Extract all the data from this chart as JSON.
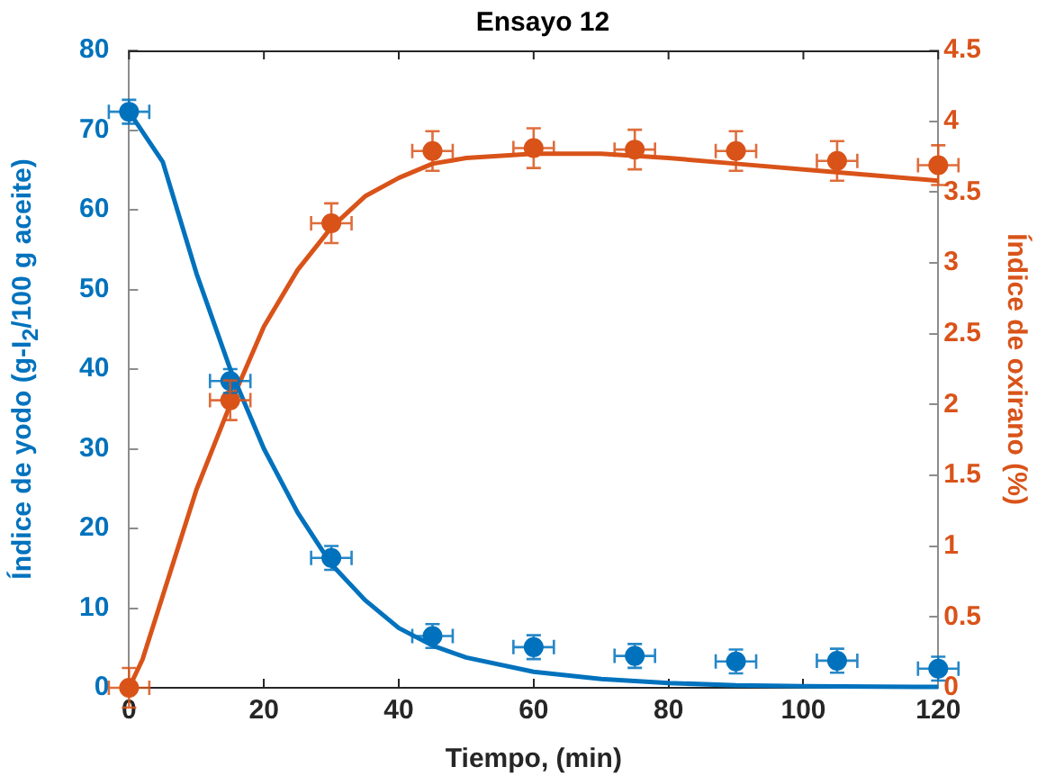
{
  "chart_data": {
    "type": "scatter",
    "title": "Ensayo 12",
    "xlabel": "Tiempo, (min)",
    "ylabel": "Índice de yodo (g-I$_{2}$/100 g aceite)",
    "y2label": "Índice de oxirano (%)",
    "xlim": [
      0,
      120
    ],
    "xticks": [
      0,
      20,
      40,
      60,
      80,
      100,
      120
    ],
    "ylim": [
      0,
      80
    ],
    "yticks": [
      0,
      10,
      20,
      30,
      40,
      50,
      60,
      70,
      80
    ],
    "y2lim": [
      0,
      4.5
    ],
    "y2ticks": [
      0,
      0.5,
      1,
      1.5,
      2,
      2.5,
      3,
      3.5,
      4,
      4.5
    ],
    "grid": false,
    "series": [
      {
        "marker": "circle",
        "color": "#0072bd",
        "x": [
          0,
          15,
          30,
          45,
          60,
          75,
          90,
          105,
          120
        ],
        "values": [
          72.3,
          38.5,
          16.3,
          6.5,
          5.1,
          4.0,
          3.3,
          3.4,
          2.4
        ],
        "errors": [
          1.5,
          1.5,
          1.5,
          1.5,
          1.5,
          1.5,
          1.5,
          1.5,
          1.5
        ],
        "xerrors": [
          3,
          3,
          3,
          3,
          3,
          3,
          3,
          3,
          3
        ]
      },
      {
        "marker": "circle",
        "axis": "y2",
        "color": "#d95319",
        "x": [
          0,
          15,
          30,
          45,
          60,
          75,
          90,
          105,
          120
        ],
        "values": [
          0,
          2.03,
          3.28,
          3.79,
          3.81,
          3.8,
          3.79,
          3.72,
          3.69
        ],
        "errors": [
          0.14,
          0.14,
          0.14,
          0.14,
          0.14,
          0.14,
          0.14,
          0.14,
          0.14
        ],
        "xerrors": [
          3,
          3,
          3,
          3,
          3,
          3,
          3,
          3,
          3
        ]
      },
      {
        "type": "line",
        "marker": "none",
        "color": "#0072bd",
        "x": [
          0,
          5,
          10,
          15,
          20,
          25,
          30,
          35,
          40,
          45,
          50,
          60,
          70,
          80,
          90,
          100,
          120
        ],
        "values": [
          72.3,
          66,
          52,
          40,
          30,
          22,
          15.5,
          11,
          7.5,
          5.3,
          3.8,
          2,
          1.1,
          0.6,
          0.3,
          0.2,
          0.1
        ]
      },
      {
        "type": "line",
        "marker": "none",
        "axis": "y2",
        "color": "#d95319",
        "x": [
          0,
          2,
          5,
          10,
          15,
          20,
          25,
          30,
          35,
          40,
          45,
          50,
          60,
          70,
          80,
          90,
          100,
          110,
          120
        ],
        "values": [
          0,
          0.2,
          0.65,
          1.4,
          2.0,
          2.55,
          2.95,
          3.25,
          3.47,
          3.6,
          3.7,
          3.74,
          3.77,
          3.77,
          3.74,
          3.7,
          3.66,
          3.62,
          3.58
        ]
      }
    ]
  }
}
